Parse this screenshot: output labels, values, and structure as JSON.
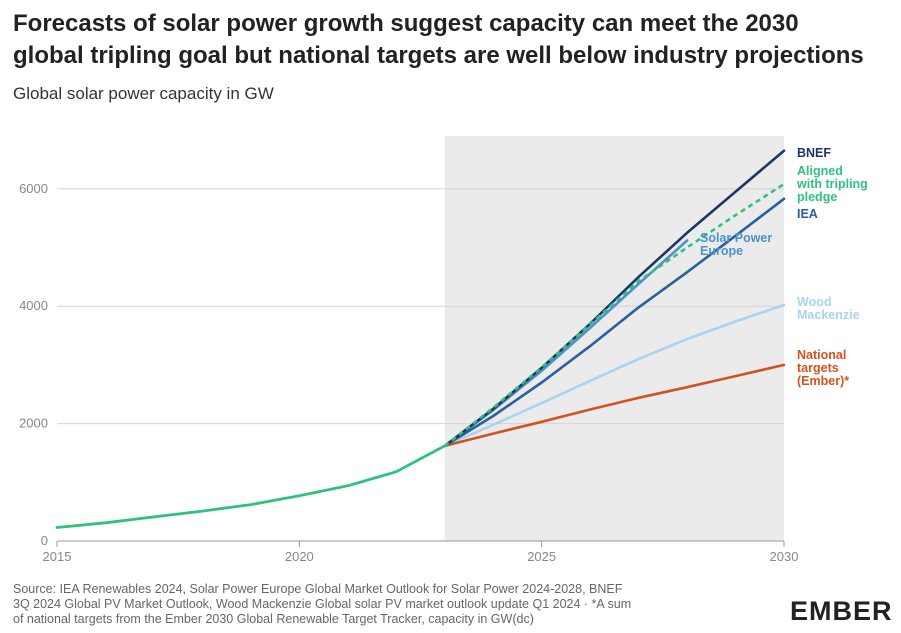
{
  "title_lines": [
    "Forecasts of solar power growth suggest capacity can meet the 2030",
    "global tripling goal but national targets are well below industry projections"
  ],
  "subtitle": "Global solar power capacity in GW",
  "footer_lines": [
    "Source: IEA Renewables 2024, Solar Power Europe Global Market Outlook for Solar Power 2024-2028, BNEF",
    "3Q 2024 Global PV Market Outlook, Wood Mackenzie Global solar PV market outlook update Q1 2024 · *A sum",
    "of national targets from the Ember 2030 Global Renewable Target Tracker, capacity in GW(dc)"
  ],
  "logo": "EMBER",
  "chart_data": {
    "type": "line",
    "xlim": [
      2015,
      2030
    ],
    "ylim": [
      0,
      6900
    ],
    "x_ticks": [
      "2015",
      "2020",
      "2025",
      "2030"
    ],
    "y_ticks": [
      "0",
      "2000",
      "4000",
      "6000"
    ],
    "forecast_shading": [
      2023,
      2030
    ],
    "grid": "horizontal",
    "historical": {
      "color": "#2ec27e",
      "points": [
        [
          2015,
          230
        ],
        [
          2016,
          310
        ],
        [
          2017,
          410
        ],
        [
          2018,
          510
        ],
        [
          2019,
          620
        ],
        [
          2020,
          770
        ],
        [
          2021,
          940
        ],
        [
          2022,
          1180
        ],
        [
          2023,
          1620
        ]
      ]
    },
    "series": [
      {
        "name": "BNEF",
        "label_lines": [
          "BNEF"
        ],
        "color": "#1f3566",
        "dashed": false,
        "points": [
          [
            2023,
            1620
          ],
          [
            2024,
            2250
          ],
          [
            2025,
            2950
          ],
          [
            2026,
            3700
          ],
          [
            2027,
            4500
          ],
          [
            2028,
            5250
          ],
          [
            2029,
            5950
          ],
          [
            2030,
            6650
          ]
        ]
      },
      {
        "name": "Aligned with tripling pledge",
        "label_lines": [
          "Aligned",
          "with tripling",
          "pledge"
        ],
        "color": "#2ec27e",
        "dashed": true,
        "points": [
          [
            2023,
            1620
          ],
          [
            2024,
            2270
          ],
          [
            2025,
            2960
          ],
          [
            2026,
            3690
          ],
          [
            2027,
            4430
          ],
          [
            2028,
            5000
          ],
          [
            2029,
            5550
          ],
          [
            2030,
            6080
          ]
        ]
      },
      {
        "name": "IEA",
        "label_lines": [
          "IEA"
        ],
        "color": "#2b5f9e",
        "dashed": false,
        "points": [
          [
            2023,
            1620
          ],
          [
            2024,
            2130
          ],
          [
            2025,
            2700
          ],
          [
            2026,
            3320
          ],
          [
            2027,
            3980
          ],
          [
            2028,
            4580
          ],
          [
            2029,
            5200
          ],
          [
            2030,
            5830
          ]
        ]
      },
      {
        "name": "Solar Power Europe",
        "label_lines": [
          "Solar Power",
          "Europe"
        ],
        "color": "#4e92cc",
        "dashed": false,
        "points": [
          [
            2023,
            1620
          ],
          [
            2024,
            2230
          ],
          [
            2025,
            2900
          ],
          [
            2026,
            3630
          ],
          [
            2027,
            4380
          ],
          [
            2028,
            5120
          ]
        ]
      },
      {
        "name": "Wood Mackenzie",
        "label_lines": [
          "Wood",
          "Mackenzie"
        ],
        "color": "#a9d3ef",
        "dashed": false,
        "points": [
          [
            2023,
            1620
          ],
          [
            2024,
            1980
          ],
          [
            2025,
            2350
          ],
          [
            2026,
            2730
          ],
          [
            2027,
            3100
          ],
          [
            2028,
            3440
          ],
          [
            2029,
            3740
          ],
          [
            2030,
            4020
          ]
        ]
      },
      {
        "name": "National targets (Ember)*",
        "label_lines": [
          "National",
          "targets",
          "(Ember)*"
        ],
        "color": "#d1541f",
        "dashed": false,
        "points": [
          [
            2023,
            1620
          ],
          [
            2024,
            1830
          ],
          [
            2025,
            2030
          ],
          [
            2026,
            2240
          ],
          [
            2027,
            2440
          ],
          [
            2028,
            2620
          ],
          [
            2029,
            2810
          ],
          [
            2030,
            3000
          ]
        ]
      }
    ]
  }
}
